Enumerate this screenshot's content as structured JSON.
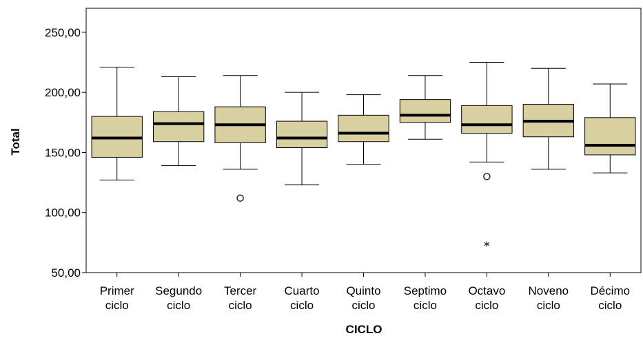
{
  "chart_data": {
    "type": "boxplot",
    "xlabel": "CICLO",
    "ylabel": "Total",
    "ylim": [
      50,
      270
    ],
    "yticks": [
      50,
      100,
      150,
      200,
      250
    ],
    "ytick_labels": [
      "50,00",
      "100,00",
      "150,00",
      "200,00",
      "250,00"
    ],
    "grid": false,
    "colors": {
      "box_fill": "#d8d0a0",
      "stroke": "#000000",
      "plot_bg": "#ffffff"
    },
    "categories": [
      {
        "label_line1": "Primer",
        "label_line2": "ciclo",
        "whisker_low": 127,
        "q1": 146,
        "median": 162,
        "q3": 180,
        "whisker_high": 221,
        "outliers": []
      },
      {
        "label_line1": "Segundo",
        "label_line2": "ciclo",
        "whisker_low": 139,
        "q1": 159,
        "median": 174,
        "q3": 184,
        "whisker_high": 213,
        "outliers": []
      },
      {
        "label_line1": "Tercer",
        "label_line2": "ciclo",
        "whisker_low": 136,
        "q1": 158,
        "median": 173,
        "q3": 188,
        "whisker_high": 214,
        "outliers": [
          112
        ]
      },
      {
        "label_line1": "Cuarto",
        "label_line2": "ciclo",
        "whisker_low": 123,
        "q1": 154,
        "median": 162,
        "q3": 176,
        "whisker_high": 200,
        "outliers": []
      },
      {
        "label_line1": "Quinto",
        "label_line2": "ciclo",
        "whisker_low": 140,
        "q1": 159,
        "median": 166,
        "q3": 181,
        "whisker_high": 198,
        "outliers": []
      },
      {
        "label_line1": "Septimo",
        "label_line2": "ciclo",
        "whisker_low": 161,
        "q1": 175,
        "median": 181,
        "q3": 194,
        "whisker_high": 214,
        "outliers": []
      },
      {
        "label_line1": "Octavo",
        "label_line2": "ciclo",
        "whisker_low": 142,
        "q1": 166,
        "median": 173,
        "q3": 189,
        "whisker_high": 225,
        "outliers": [
          130
        ],
        "extremes": [
          72
        ]
      },
      {
        "label_line1": "Noveno",
        "label_line2": "ciclo",
        "whisker_low": 136,
        "q1": 163,
        "median": 176,
        "q3": 190,
        "whisker_high": 220,
        "outliers": []
      },
      {
        "label_line1": "Décimo",
        "label_line2": "ciclo",
        "whisker_low": 133,
        "q1": 148,
        "median": 156,
        "q3": 179,
        "whisker_high": 207,
        "outliers": []
      }
    ]
  }
}
